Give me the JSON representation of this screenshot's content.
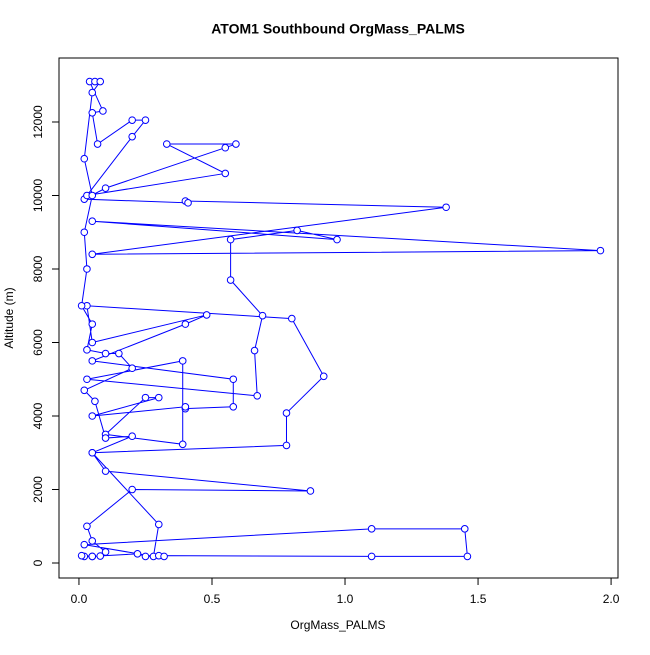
{
  "chart_data": {
    "type": "scatter-line",
    "title": "ATOM1 Southbound OrgMass_PALMS",
    "x_label": "OrgMass_PALMS",
    "y_label": "Altitude (m)",
    "color": "#0000ff",
    "x": [
      0.02,
      0.05,
      0.08,
      0.1,
      0.05,
      0.03,
      0.2,
      0.87,
      0.1,
      0.05,
      0.78,
      0.78,
      0.92,
      0.8,
      0.03,
      0.05,
      0.48,
      0.4,
      0.05,
      0.58,
      0.58,
      0.4,
      0.4,
      0.05,
      0.3,
      0.25,
      0.1,
      0.39,
      0.39,
      0.03,
      0.67,
      0.66,
      0.69,
      0.57,
      0.57,
      0.82,
      0.97,
      0.05,
      1.96,
      0.05,
      1.38,
      0.4,
      0.41,
      0.02,
      0.1,
      0.55,
      0.59,
      0.33,
      0.55,
      0.03,
      0.2,
      0.25,
      0.2,
      0.07,
      0.05,
      0.09,
      0.04,
      0.06,
      0.08,
      0.05,
      0.02,
      0.05,
      0.02,
      0.03,
      0.01,
      0.05,
      0.03,
      0.1,
      0.15,
      0.2,
      0.02,
      0.06,
      0.1,
      0.2,
      0.05,
      0.3,
      0.28,
      0.02,
      1.1,
      1.45,
      1.46,
      1.1,
      0.3,
      0.32,
      0.25,
      0.22,
      0.05,
      0.01
    ],
    "values": [
      180,
      180,
      190,
      300,
      600,
      1000,
      2000,
      1960,
      2500,
      3000,
      3200,
      4080,
      5080,
      6650,
      7000,
      6000,
      6750,
      6500,
      5500,
      5000,
      4250,
      4200,
      4250,
      4000,
      4500,
      4500,
      3500,
      3230,
      5500,
      5000,
      4550,
      5780,
      6730,
      7700,
      8800,
      9050,
      8800,
      9300,
      8500,
      8400,
      9680,
      9850,
      9800,
      9900,
      10200,
      11300,
      11400,
      11400,
      10600,
      10000,
      11600,
      12050,
      12050,
      11400,
      12250,
      12300,
      13100,
      13100,
      13100,
      12800,
      11000,
      10000,
      9000,
      8000,
      7000,
      6500,
      5800,
      5700,
      5700,
      5300,
      4700,
      4400,
      3400,
      3450,
      3000,
      1050,
      180,
      500,
      930,
      930,
      180,
      180,
      200,
      180,
      180,
      250,
      180,
      200
    ],
    "xlim": [
      -0.075,
      2.026
    ],
    "ylim": [
      -408,
      13741
    ],
    "xticks": [
      {
        "value": 0,
        "label": "0.0"
      },
      0.5,
      {
        "value": 1,
        "label": "1.0"
      },
      1.5,
      {
        "value": 2,
        "label": "2.0"
      }
    ],
    "yticks": [
      0,
      2000,
      4000,
      6000,
      8000,
      10000,
      12000
    ]
  }
}
